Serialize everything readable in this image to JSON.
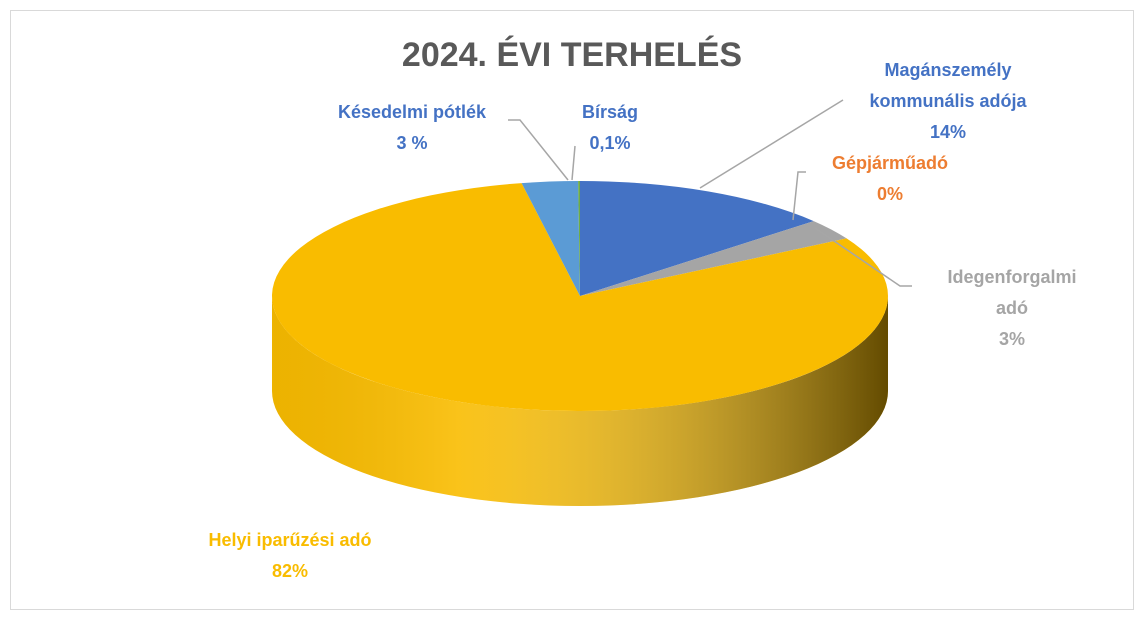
{
  "chart_data": {
    "type": "pie",
    "title": "2024. ÉVI TERHELÉS",
    "categories": [
      "Magánszemély kommunális adója",
      "Gépjárműadó",
      "Idegenforgalmi adó",
      "Helyi iparűzési adó",
      "Késedelmi pótlék",
      "Bírság"
    ],
    "values": [
      14,
      0,
      3,
      82,
      3,
      0.1
    ],
    "value_labels": [
      "14%",
      "0%",
      "3%",
      "82%",
      "3 %",
      "0,1%"
    ],
    "colors": [
      "#4472c4",
      "#ed7d31",
      "#a5a5a5",
      "#f9bc00",
      "#5b9bd5",
      "#70ad47"
    ],
    "label_colors": [
      "#4472c4",
      "#ed7d31",
      "#a5a5a5",
      "#f9bc00",
      "#4472c4",
      "#4472c4"
    ]
  }
}
